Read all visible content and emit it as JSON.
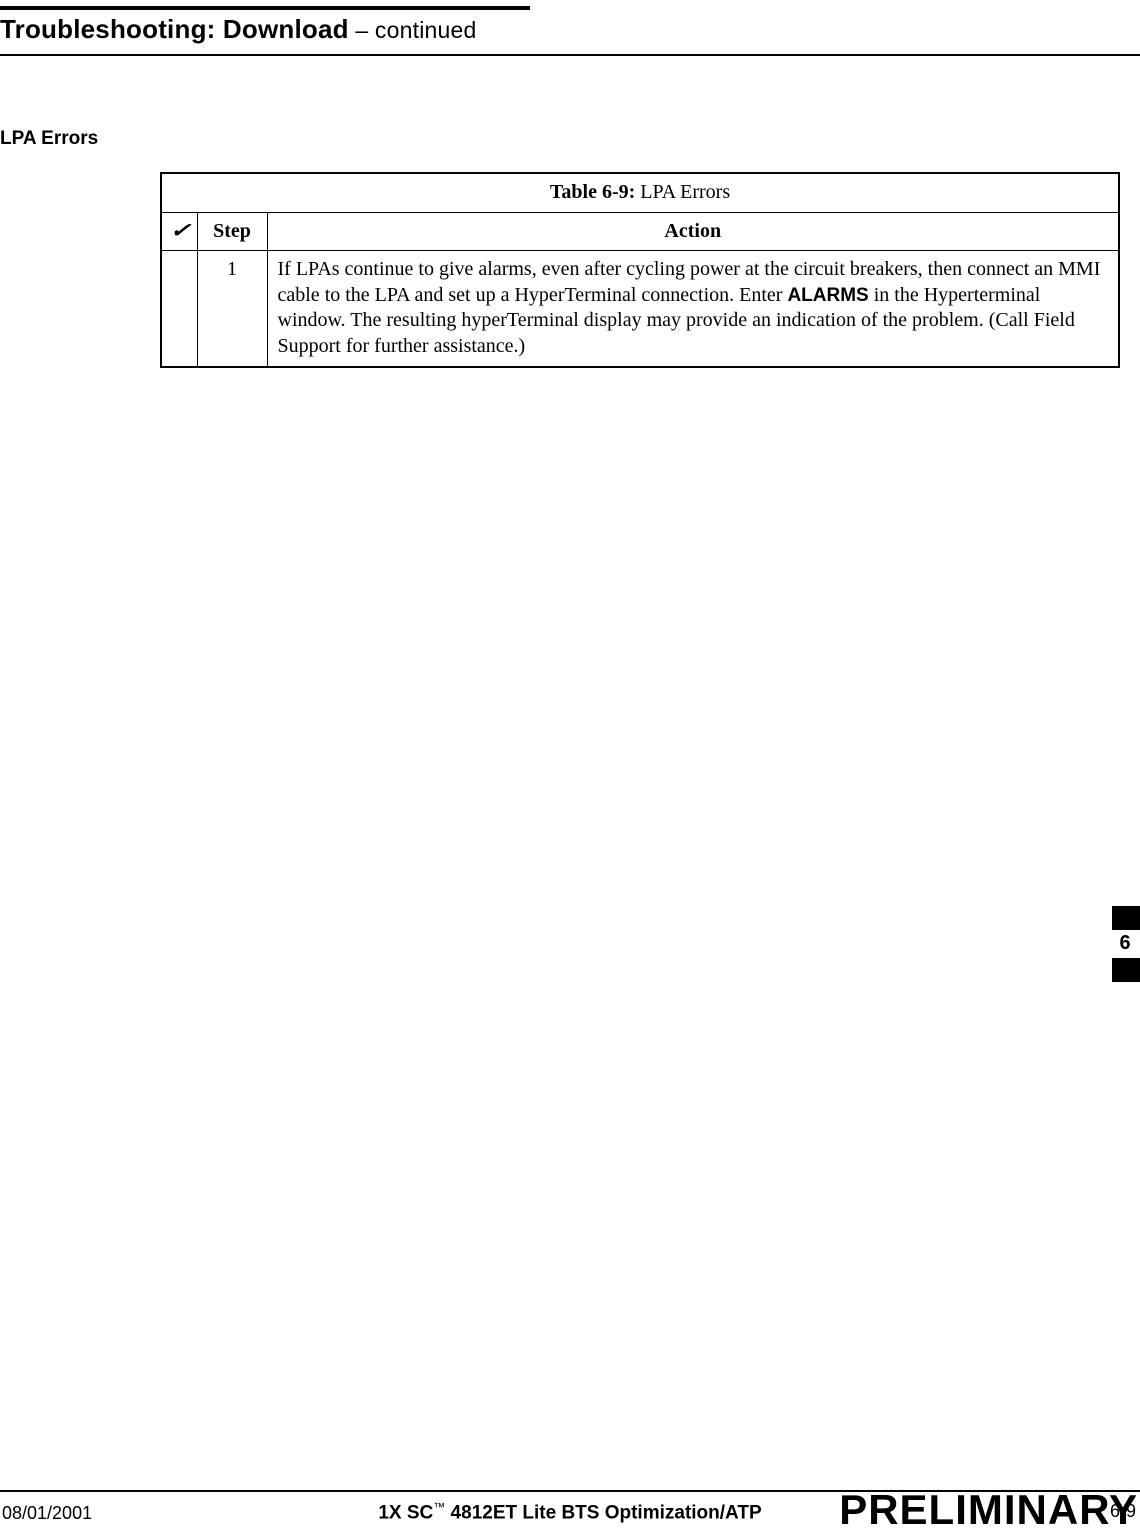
{
  "header": {
    "title_bold": "Troubleshooting: Download",
    "title_cont": " – continued"
  },
  "section": {
    "title": "LPA Errors"
  },
  "table": {
    "caption_bold": "Table 6-9:",
    "caption_rest": " LPA Errors",
    "check_glyph": "✓",
    "col_step": "Step",
    "col_action": "Action",
    "rows": [
      {
        "step": "1",
        "action_pre": "If LPAs continue to give alarms, even after cycling power at the circuit breakers, then connect an MMI cable to the LPA and set up a HyperTerminal connection. Enter ",
        "action_kw": "ALARMS",
        "action_post": " in the Hyperterminal window. The resulting hyperTerminal display may provide an indication of the problem. (Call Field Support for further assistance.)"
      }
    ]
  },
  "tab": {
    "number": "6"
  },
  "footer": {
    "date": "08/01/2001",
    "center_pre": "1X SC",
    "center_tm": "™",
    "center_post": " 4812ET Lite BTS Optimization/ATP",
    "page": "6-9",
    "watermark": "PRELIMINARY"
  }
}
